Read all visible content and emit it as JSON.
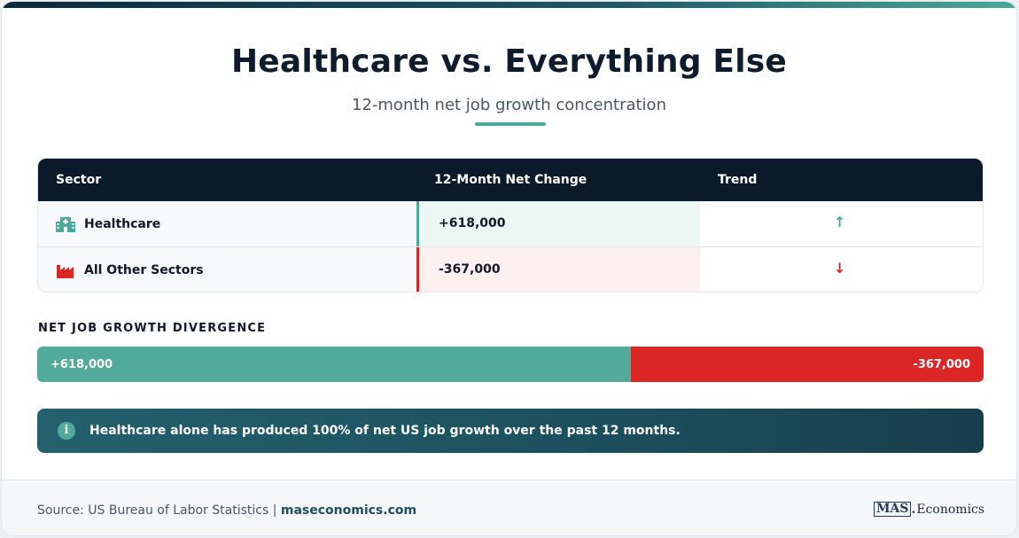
{
  "header": {
    "title": "Healthcare vs. Everything Else",
    "subtitle": "12-month net job growth concentration"
  },
  "table": {
    "columns": [
      "Sector",
      "12-Month Net Change",
      "Trend"
    ],
    "rows": [
      {
        "sector": "Healthcare",
        "icon": "hospital-icon",
        "change": "+618,000",
        "trend": "↑",
        "trend_dir": "up"
      },
      {
        "sector": "All Other Sectors",
        "icon": "factory-icon",
        "change": "-367,000",
        "trend": "↓",
        "trend_dir": "down"
      }
    ]
  },
  "divergence": {
    "label": "NET JOB GROWTH DIVERGENCE",
    "positive_label": "+618,000",
    "negative_label": "-367,000",
    "positive_value": 618000,
    "negative_value": -367000
  },
  "insight": {
    "icon": "info-icon",
    "text": "Healthcare alone has produced 100% of net US job growth over the past 12 months."
  },
  "footer": {
    "source_prefix": "Source: US Bureau of Labor Statistics | ",
    "source_site": "maseconomics.com",
    "logo_mark": "MAS",
    "logo_text": "Economics"
  },
  "colors": {
    "positive": "#52aa9b",
    "negative": "#dc2626",
    "header_bg": "#0b1a2b"
  }
}
